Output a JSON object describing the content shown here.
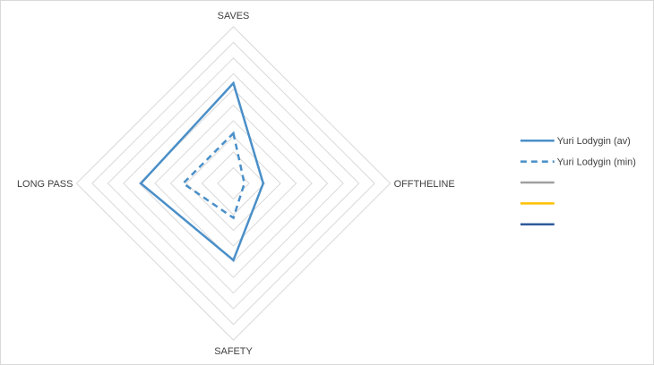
{
  "chart_data": {
    "type": "radar",
    "axes": [
      "SAVES",
      "OFFTHELINE",
      "SAFETY",
      "LONG PASS"
    ],
    "range": [
      0,
      10
    ],
    "grid": true,
    "legend_position": "right",
    "series": [
      {
        "name": "Yuri Lodygin (av)",
        "values": [
          6.4,
          1.9,
          4.9,
          5.9
        ],
        "color": "#4a8fc8",
        "style": "solid"
      },
      {
        "name": "Yuri Lodygin (min)",
        "values": [
          3.2,
          0.7,
          2.2,
          3.2
        ],
        "color": "#4a8fc8",
        "style": "dashed"
      },
      {
        "name": "",
        "values": [],
        "color": "#a0a0a0",
        "style": "solid"
      },
      {
        "name": "",
        "values": [],
        "color": "#ffc000",
        "style": "solid"
      },
      {
        "name": "",
        "values": [],
        "color": "#2e5b9a",
        "style": "solid"
      }
    ]
  }
}
